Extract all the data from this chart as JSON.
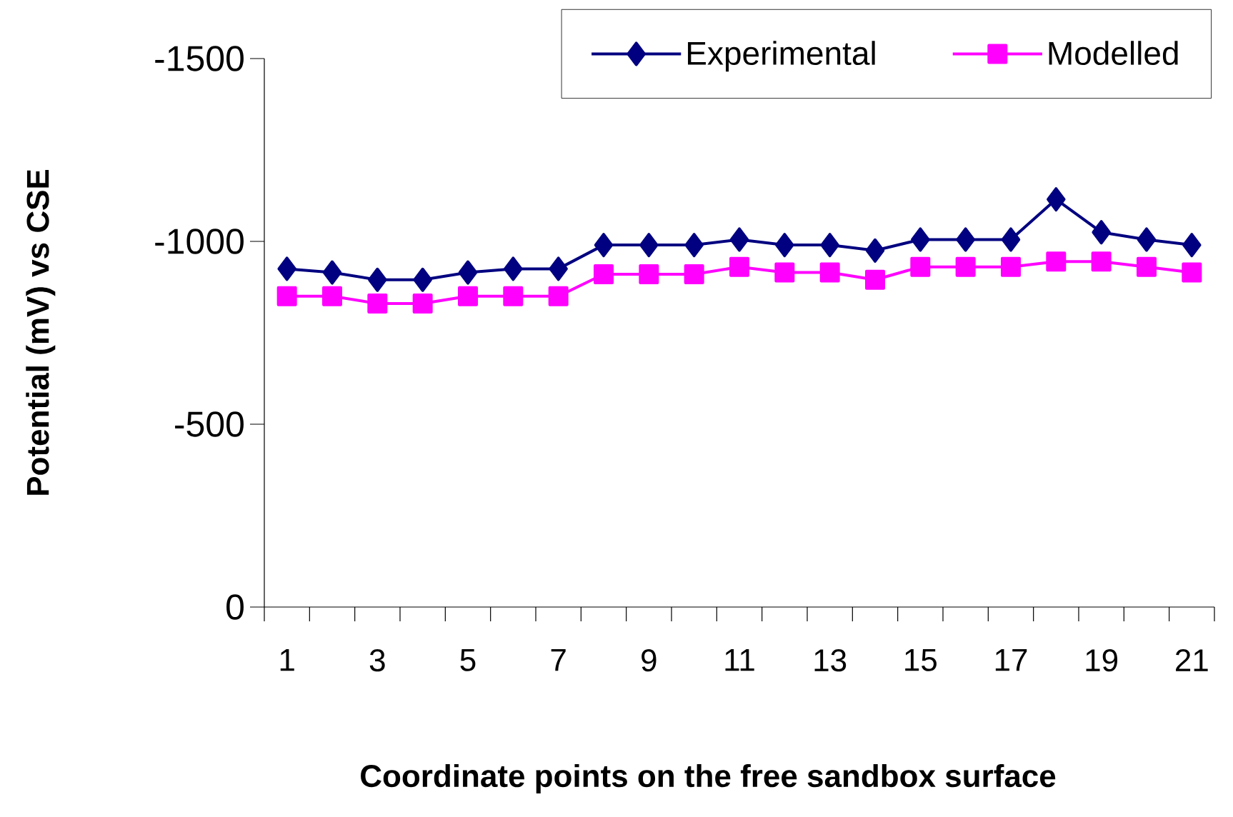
{
  "chart_data": {
    "type": "line",
    "xlabel": "Coordinate points on the free sandbox surface",
    "ylabel": "Potential (mV) vs CSE",
    "categories": [
      "1",
      null,
      "3",
      null,
      "5",
      null,
      "7",
      null,
      "9",
      null,
      "11",
      null,
      "13",
      null,
      "15",
      null,
      "17",
      null,
      "19",
      null,
      "21"
    ],
    "series": [
      {
        "name": "Experimental",
        "color": "#000080",
        "marker": "diamond",
        "values": [
          -925,
          -915,
          -895,
          -895,
          -915,
          -925,
          -925,
          -990,
          -990,
          -990,
          -1005,
          -990,
          -990,
          -975,
          -1005,
          -1005,
          -1005,
          -1115,
          -1025,
          -1005,
          -990
        ]
      },
      {
        "name": "Modelled",
        "color": "#ff00ff",
        "marker": "square",
        "values": [
          -850,
          -850,
          -830,
          -830,
          -850,
          -850,
          -850,
          -910,
          -910,
          -910,
          -930,
          -915,
          -915,
          -895,
          -930,
          -930,
          -930,
          -945,
          -945,
          -930,
          -915
        ]
      }
    ],
    "ylim": [
      0,
      -1500
    ],
    "yticks": [
      0,
      -500,
      -1000,
      -1500
    ],
    "legend": "top right",
    "grid": false
  }
}
